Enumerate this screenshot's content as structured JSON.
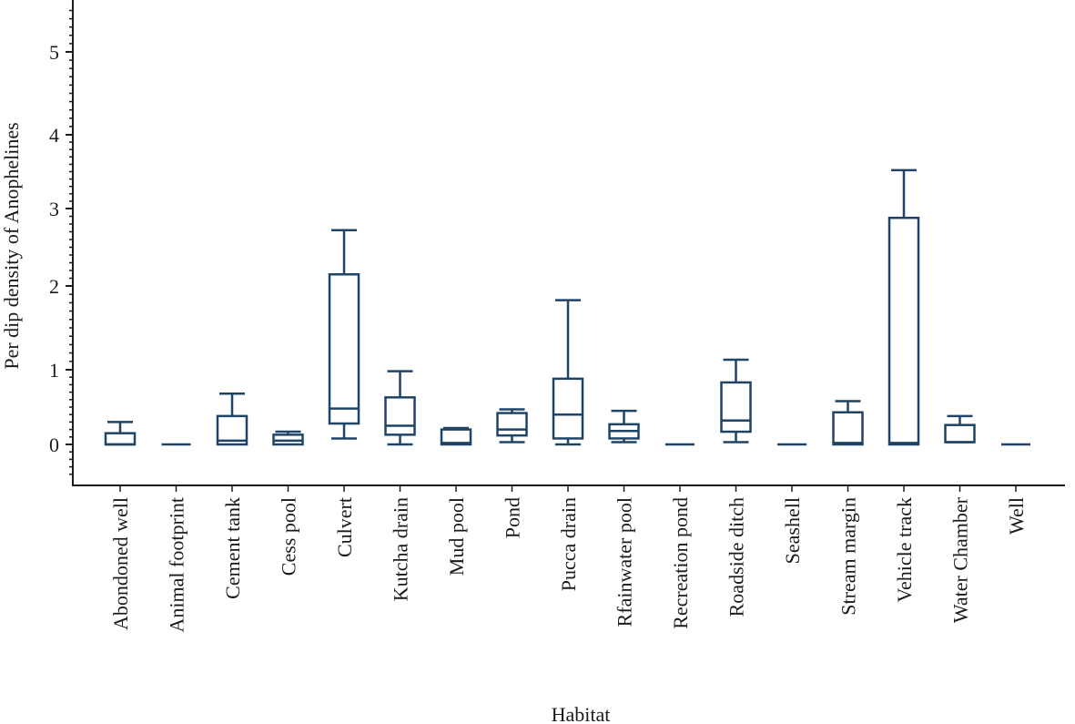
{
  "chart_data": {
    "type": "box",
    "title": "",
    "xlabel": "Habitat",
    "ylabel": "Per dip density of Anophelines",
    "ylim": [
      -0.5,
      5.6
    ],
    "yticks": [
      0,
      1,
      2,
      3,
      4,
      5
    ],
    "grid": false,
    "color": "#1f4466",
    "categories": [
      "Abondoned well",
      "Animal footprint",
      "Cement tank",
      "Cess pool",
      "Culvert",
      "Kutcha drain",
      "Mud pool",
      "Pond",
      "Pucca drain",
      "Rfainwater pool",
      "Recreation pond",
      "Roadside ditch",
      "Seashell",
      "Stream margin",
      "Vehicle track",
      "Water Chamber",
      "Well"
    ],
    "boxes": [
      {
        "min": 0,
        "q1": 0,
        "median": 0,
        "q3": 0.15,
        "max": 0.3
      },
      {
        "min": 0,
        "q1": 0,
        "median": 0,
        "q3": 0,
        "max": 0
      },
      {
        "min": 0,
        "q1": 0,
        "median": 0.05,
        "q3": 0.38,
        "max": 0.68
      },
      {
        "min": 0,
        "q1": 0,
        "median": 0.05,
        "q3": 0.13,
        "max": 0.17
      },
      {
        "min": 0.08,
        "q1": 0.28,
        "median": 0.48,
        "q3": 2.15,
        "max": 2.72
      },
      {
        "min": 0,
        "q1": 0.13,
        "median": 0.25,
        "q3": 0.63,
        "max": 0.98
      },
      {
        "min": 0,
        "q1": 0,
        "median": 0.02,
        "q3": 0.2,
        "max": 0.22
      },
      {
        "min": 0.03,
        "q1": 0.12,
        "median": 0.2,
        "q3": 0.42,
        "max": 0.47
      },
      {
        "min": 0,
        "q1": 0.08,
        "median": 0.4,
        "q3": 0.88,
        "max": 1.83
      },
      {
        "min": 0.03,
        "q1": 0.08,
        "median": 0.18,
        "q3": 0.27,
        "max": 0.45
      },
      {
        "min": 0,
        "q1": 0,
        "median": 0,
        "q3": 0,
        "max": 0
      },
      {
        "min": 0.03,
        "q1": 0.17,
        "median": 0.32,
        "q3": 0.83,
        "max": 1.12
      },
      {
        "min": 0,
        "q1": 0,
        "median": 0,
        "q3": 0,
        "max": 0
      },
      {
        "min": 0,
        "q1": 0,
        "median": 0.02,
        "q3": 0.43,
        "max": 0.58
      },
      {
        "min": 0,
        "q1": 0,
        "median": 0.02,
        "q3": 2.88,
        "max": 3.52
      },
      {
        "min": 0.03,
        "q1": 0.03,
        "median": 0.03,
        "q3": 0.26,
        "max": 0.38
      },
      {
        "min": 0,
        "q1": 0,
        "median": 0,
        "q3": 0,
        "max": 0
      }
    ]
  }
}
